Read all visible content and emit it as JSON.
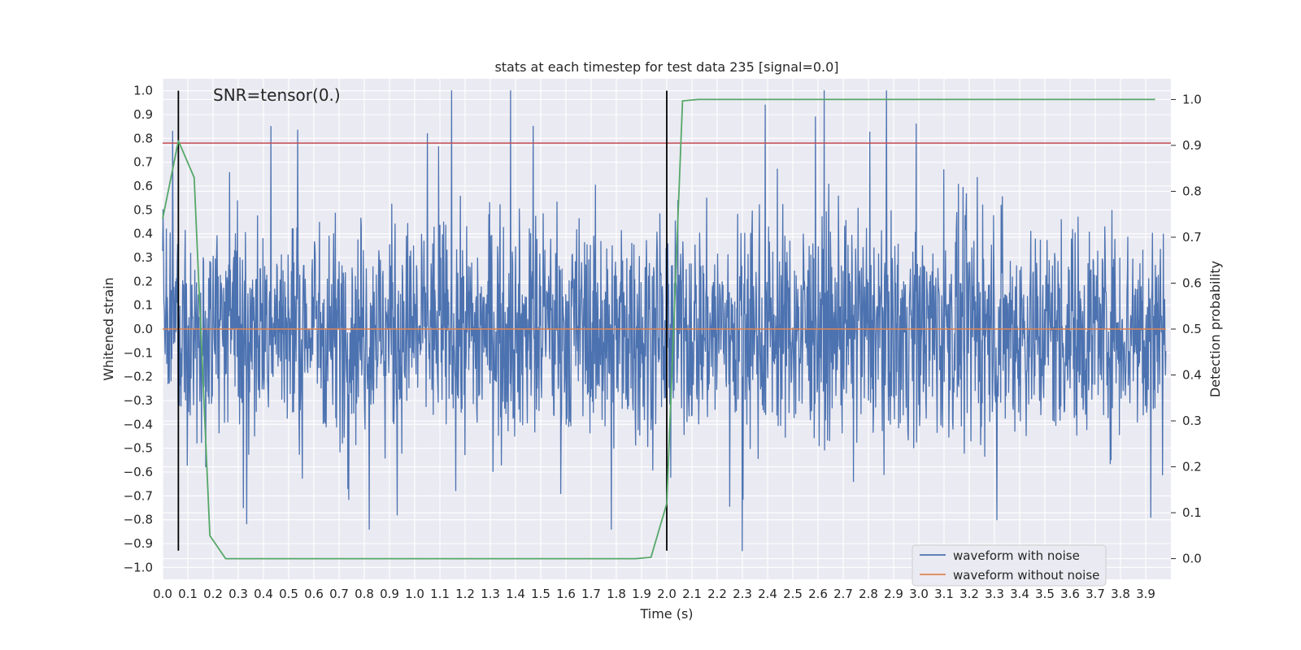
{
  "chart_data": {
    "type": "line",
    "title": "stats at each timestep for test data 235 [signal=0.0]",
    "xlabel": "Time (s)",
    "ylabel": "Whitened strain",
    "y2label": "Detection probability",
    "annotation": "SNR=tensor(0.)",
    "xlim": [
      0.0,
      4.0
    ],
    "ylim": [
      -1.05,
      1.05
    ],
    "y2lim": [
      -0.045,
      1.045
    ],
    "x_ticks": [
      "0.0",
      "0.1",
      "0.2",
      "0.3",
      "0.4",
      "0.5",
      "0.6",
      "0.7",
      "0.8",
      "0.9",
      "1.0",
      "1.1",
      "1.2",
      "1.3",
      "1.4",
      "1.5",
      "1.6",
      "1.7",
      "1.8",
      "1.9",
      "2.0",
      "2.1",
      "2.2",
      "2.3",
      "2.4",
      "2.5",
      "2.6",
      "2.7",
      "2.8",
      "2.9",
      "3.0",
      "3.1",
      "3.2",
      "3.3",
      "3.4",
      "3.5",
      "3.6",
      "3.7",
      "3.8",
      "3.9"
    ],
    "y_ticks": [
      "1.0",
      "0.9",
      "0.8",
      "0.7",
      "0.6",
      "0.5",
      "0.4",
      "0.3",
      "0.2",
      "0.1",
      "0.0",
      "−0.1",
      "−0.2",
      "−0.3",
      "−0.4",
      "−0.5",
      "−0.6",
      "−0.7",
      "−0.8",
      "−0.9",
      "−1.0"
    ],
    "y2_ticks": [
      "1.0",
      "0.9",
      "0.8",
      "0.7",
      "0.6",
      "0.5",
      "0.4",
      "0.3",
      "0.2",
      "0.1",
      "0.0"
    ],
    "grid": true,
    "legend_position": "lower-right",
    "series": [
      {
        "name": "waveform with noise",
        "color": "#4c72b0",
        "axis": "left",
        "kind": "noise",
        "sample_rate": 2048,
        "duration": 3.98,
        "approx_std": 0.22,
        "approx_max": 1.0,
        "approx_min": -0.93,
        "peaks": [
          [
            0.04,
            0.83
          ],
          [
            0.43,
            0.85
          ],
          [
            1.05,
            0.82
          ],
          [
            1.38,
            1.0
          ],
          [
            2.39,
            0.94
          ],
          [
            2.59,
            0.89
          ],
          [
            2.99,
            0.86
          ],
          [
            0.82,
            -0.84
          ],
          [
            1.78,
            -0.84
          ],
          [
            2.3,
            -0.93
          ],
          [
            3.31,
            -0.8
          ],
          [
            3.92,
            -0.79
          ],
          [
            0.32,
            -0.75
          ],
          [
            0.93,
            -0.78
          ]
        ]
      },
      {
        "name": "waveform without noise",
        "color": "#dd8452",
        "axis": "left",
        "x": [
          0.0,
          3.98
        ],
        "y": [
          0.0,
          0.0
        ]
      },
      {
        "name": "",
        "color": "#55a868",
        "axis": "right",
        "x": [
          0.0,
          0.0625,
          0.125,
          0.1875,
          0.25,
          0.3125,
          1.5,
          1.875,
          1.9375,
          2.0,
          2.0625,
          2.125,
          2.5,
          3.0,
          3.5,
          3.9375
        ],
        "y": [
          0.74,
          0.91,
          0.83,
          0.05,
          0.0,
          0.0,
          0.0,
          0.0,
          0.003,
          0.12,
          0.997,
          1.0,
          1.0,
          1.0,
          1.0,
          1.0
        ]
      }
    ],
    "hlines": [
      {
        "y2": 0.905,
        "color": "#c44e52"
      }
    ],
    "vlines": [
      {
        "x": 0.0625,
        "color": "#000000"
      },
      {
        "x": 2.0,
        "color": "#000000"
      }
    ]
  }
}
